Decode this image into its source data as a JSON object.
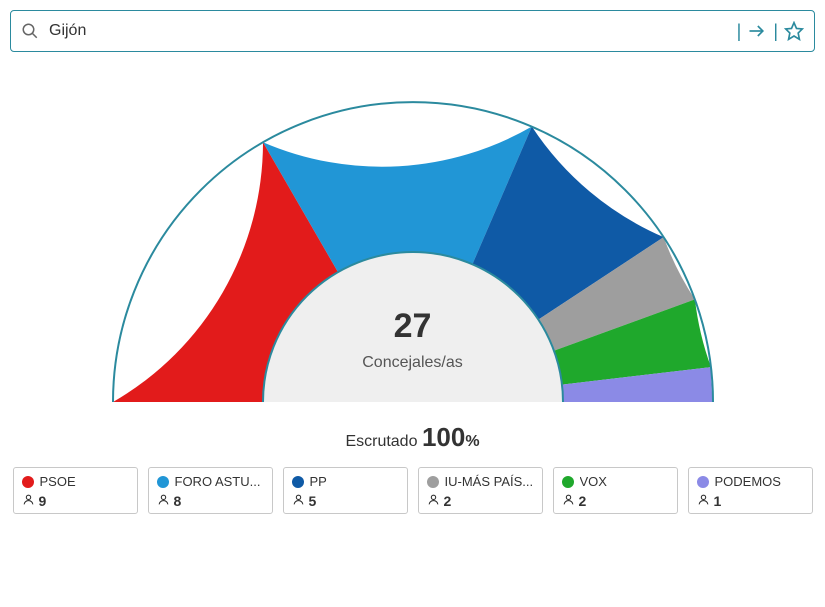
{
  "search": {
    "value": "Gijón",
    "placeholder": ""
  },
  "chart": {
    "type": "half-donut",
    "total_seats": 27,
    "seats_label": "Concejales/as",
    "inner_radius": 150,
    "outer_radius": 300,
    "inner_fill": "#efefef",
    "ring_border": "#2b8a9e",
    "background": "#ffffff",
    "series": [
      {
        "name": "PSOE",
        "seats": 9,
        "color": "#e21b1b"
      },
      {
        "name": "FORO ASTU...",
        "seats": 8,
        "color": "#2196d6"
      },
      {
        "name": "PP",
        "seats": 5,
        "color": "#0f5aa6"
      },
      {
        "name": "IU-MÁS PAÍS...",
        "seats": 2,
        "color": "#9e9e9e"
      },
      {
        "name": "VOX",
        "seats": 2,
        "color": "#1fa82c"
      },
      {
        "name": "PODEMOS",
        "seats": 1,
        "color": "#8b8ae6"
      }
    ]
  },
  "scrutinized": {
    "label": "Escrutado",
    "value": "100",
    "symbol": "%"
  },
  "styles": {
    "accent": "#2b8a9e",
    "text": "#333333",
    "border": "#c8c8c8"
  }
}
